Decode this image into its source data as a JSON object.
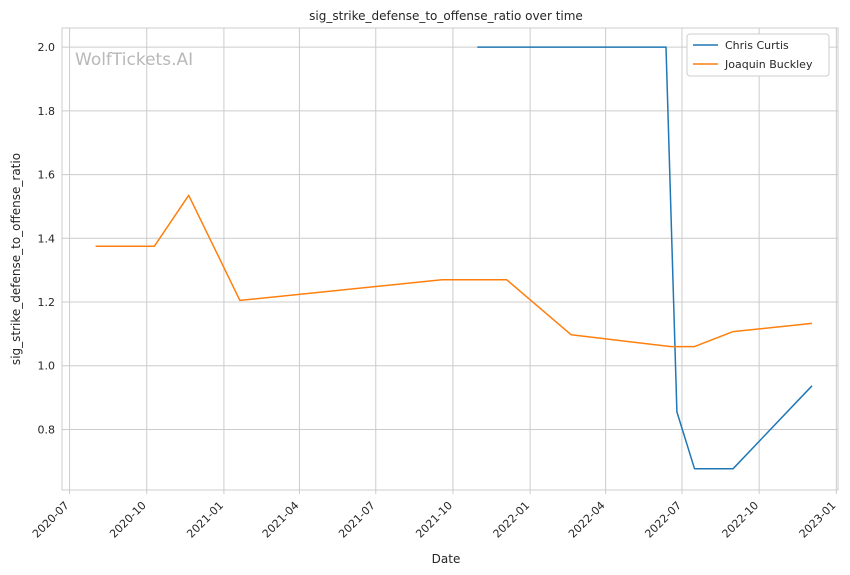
{
  "chart_data": {
    "type": "line",
    "title": "sig_strike_defense_to_offense_ratio over time",
    "xlabel": "Date",
    "ylabel": "sig_strike_defense_to_offense_ratio",
    "watermark": "WolfTickets.AI",
    "xlim": [
      "2020-06-22",
      "2023-01-03"
    ],
    "ylim": [
      0.61,
      2.06
    ],
    "grid": true,
    "legend_position": "top-right",
    "x_ticks": [
      "2020-07-01",
      "2020-10-01",
      "2021-01-01",
      "2021-04-01",
      "2021-07-01",
      "2021-10-01",
      "2022-01-01",
      "2022-04-01",
      "2022-07-01",
      "2022-10-01",
      "2023-01-01"
    ],
    "x_tick_labels": [
      "2020-07",
      "2020-10",
      "2021-01",
      "2021-04",
      "2021-07",
      "2021-10",
      "2022-01",
      "2022-04",
      "2022-07",
      "2022-10",
      "2023-01"
    ],
    "y_ticks": [
      0.8,
      1.0,
      1.2,
      1.4,
      1.6,
      1.8,
      2.0
    ],
    "y_tick_labels": [
      "0.8",
      "1.0",
      "1.2",
      "1.4",
      "1.6",
      "1.8",
      "2.0"
    ],
    "series": [
      {
        "name": "Chris Curtis",
        "color": "#1f77b4",
        "points": [
          [
            "2021-10-30",
            2.0
          ],
          [
            "2022-06-12",
            2.0
          ],
          [
            "2022-06-25",
            0.855
          ],
          [
            "2022-07-16",
            0.677
          ],
          [
            "2022-08-31",
            0.677
          ],
          [
            "2022-12-03",
            0.937
          ]
        ]
      },
      {
        "name": "Joaquin Buckley",
        "color": "#ff7f0e",
        "points": [
          [
            "2020-08-01",
            1.375
          ],
          [
            "2020-10-10",
            1.375
          ],
          [
            "2020-11-20",
            1.535
          ],
          [
            "2021-01-20",
            1.205
          ],
          [
            "2021-09-18",
            1.27
          ],
          [
            "2021-12-04",
            1.27
          ],
          [
            "2022-02-19",
            1.097
          ],
          [
            "2022-06-18",
            1.06
          ],
          [
            "2022-07-16",
            1.06
          ],
          [
            "2022-08-31",
            1.107
          ],
          [
            "2022-12-03",
            1.133
          ]
        ]
      }
    ]
  }
}
